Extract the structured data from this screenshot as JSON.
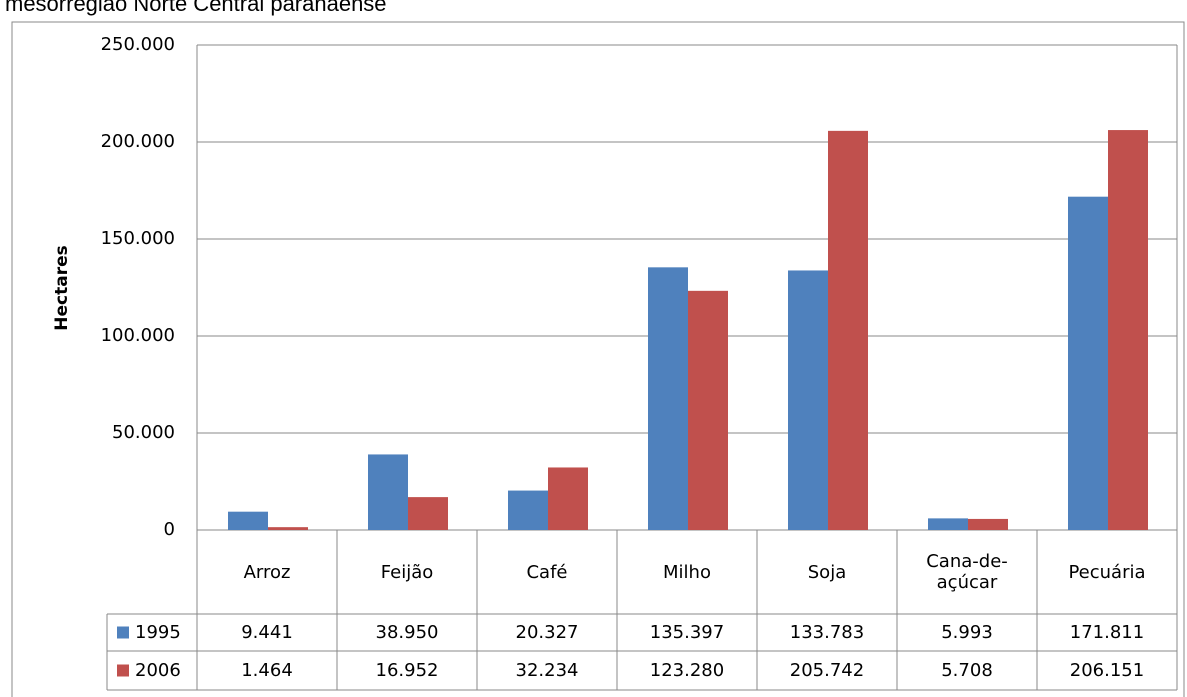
{
  "chart_data": {
    "type": "bar",
    "title": "mesorregião Norte Central paranaense",
    "ylabel": "Hectares",
    "categories": [
      "Arroz",
      "Feijão",
      "Café",
      "Milho",
      "Soja",
      "Cana-de-açúcar",
      "Pecuária"
    ],
    "series": [
      {
        "name": "1995",
        "color": "#4f81bd",
        "values": [
          9441,
          38950,
          20327,
          135397,
          133783,
          5993,
          171811
        ],
        "value_labels": [
          "9.441",
          "38.950",
          "20.327",
          "135.397",
          "133.783",
          "5.993",
          "171.811"
        ]
      },
      {
        "name": "2006",
        "color": "#c0504d",
        "values": [
          1464,
          16952,
          32234,
          123280,
          205742,
          5708,
          206151
        ],
        "value_labels": [
          "1.464",
          "16.952",
          "32.234",
          "123.280",
          "205.742",
          "5.708",
          "206.151"
        ]
      }
    ],
    "ylim": [
      0,
      250000
    ],
    "yticks": [
      0,
      {
        "value": 50000,
        "label": "50.000"
      },
      {
        "value": 100000,
        "label": "100.000"
      },
      {
        "value": 150000,
        "label": "150.000"
      },
      {
        "value": 200000,
        "label": "200.000"
      },
      {
        "value": 250000,
        "label": "250.000"
      }
    ],
    "grid": true
  }
}
